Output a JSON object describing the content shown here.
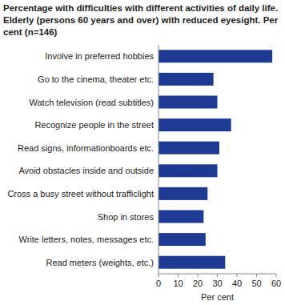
{
  "chart_data": {
    "type": "bar",
    "orientation": "horizontal",
    "title": "Percentage with difficulties with different activities of daily life. Elderly (persons 60 years and over) with reduced eyesight. Per cent (n=146)",
    "categories": [
      "Involve in preferred hobbies",
      "Go to the cinema, theater etc.",
      "Watch television (read subtitles)",
      "Recognize people in the street",
      "Read signs, informationboards etc.",
      "Avoid obstacles inside and outside",
      "Cross a busy street without trafficlight",
      "Shop in stores",
      "Write letters, notes, messages etc.",
      "Read meters (weights, etc.)"
    ],
    "values": [
      58,
      28,
      30,
      37,
      31,
      30,
      25,
      23,
      24,
      34
    ],
    "color": "#1f3a93",
    "xlabel": "Per cent",
    "xlim": [
      0,
      60
    ],
    "xticks": [
      0,
      10,
      20,
      30,
      40,
      50,
      60
    ],
    "grid": false
  }
}
